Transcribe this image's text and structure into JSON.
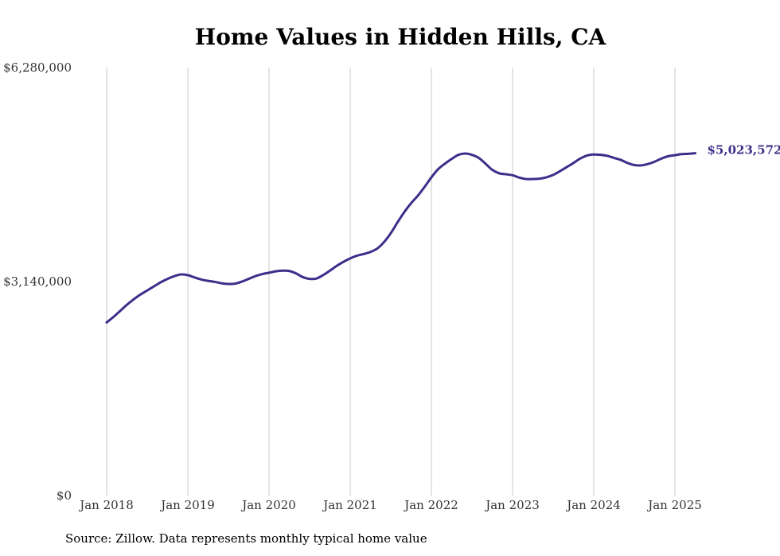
{
  "chart_data": {
    "type": "line",
    "title": "Home Values in Hidden Hills, CA",
    "xlabel": "",
    "ylabel": "",
    "ylim": [
      0,
      6280000
    ],
    "y_ticks": [
      "$0",
      "$3,140,000",
      "$6,280,000"
    ],
    "x_ticks": [
      "Jan 2018",
      "Jan 2019",
      "Jan 2020",
      "Jan 2021",
      "Jan 2022",
      "Jan 2023",
      "Jan 2024",
      "Jan 2025"
    ],
    "grid": "vertical",
    "series_color": "#3a2f8a",
    "end_label": "$5,023,572",
    "series": [
      {
        "values": [
          [
            "2018-01",
            2540000
          ],
          [
            "2018-02",
            2620000
          ],
          [
            "2018-03",
            2710000
          ],
          [
            "2018-04",
            2800000
          ],
          [
            "2018-05",
            2880000
          ],
          [
            "2018-06",
            2950000
          ],
          [
            "2018-07",
            3010000
          ],
          [
            "2018-08",
            3070000
          ],
          [
            "2018-09",
            3130000
          ],
          [
            "2018-10",
            3180000
          ],
          [
            "2018-11",
            3220000
          ],
          [
            "2018-12",
            3245000
          ],
          [
            "2019-01",
            3235000
          ],
          [
            "2019-02",
            3200000
          ],
          [
            "2019-03",
            3170000
          ],
          [
            "2019-04",
            3150000
          ],
          [
            "2019-05",
            3135000
          ],
          [
            "2019-06",
            3115000
          ],
          [
            "2019-07",
            3105000
          ],
          [
            "2019-08",
            3110000
          ],
          [
            "2019-09",
            3140000
          ],
          [
            "2019-10",
            3180000
          ],
          [
            "2019-11",
            3220000
          ],
          [
            "2019-12",
            3250000
          ],
          [
            "2020-01",
            3270000
          ],
          [
            "2020-02",
            3290000
          ],
          [
            "2020-03",
            3300000
          ],
          [
            "2020-04",
            3295000
          ],
          [
            "2020-05",
            3260000
          ],
          [
            "2020-06",
            3205000
          ],
          [
            "2020-07",
            3180000
          ],
          [
            "2020-08",
            3185000
          ],
          [
            "2020-09",
            3235000
          ],
          [
            "2020-10",
            3300000
          ],
          [
            "2020-11",
            3370000
          ],
          [
            "2020-12",
            3430000
          ],
          [
            "2021-01",
            3480000
          ],
          [
            "2021-02",
            3520000
          ],
          [
            "2021-03",
            3545000
          ],
          [
            "2021-04",
            3575000
          ],
          [
            "2021-05",
            3625000
          ],
          [
            "2021-06",
            3720000
          ],
          [
            "2021-07",
            3850000
          ],
          [
            "2021-08",
            4010000
          ],
          [
            "2021-09",
            4160000
          ],
          [
            "2021-10",
            4290000
          ],
          [
            "2021-11",
            4400000
          ],
          [
            "2021-12",
            4530000
          ],
          [
            "2022-01",
            4670000
          ],
          [
            "2022-02",
            4790000
          ],
          [
            "2022-03",
            4870000
          ],
          [
            "2022-04",
            4940000
          ],
          [
            "2022-05",
            5000000
          ],
          [
            "2022-06",
            5020000
          ],
          [
            "2022-07",
            5000000
          ],
          [
            "2022-08",
            4955000
          ],
          [
            "2022-09",
            4870000
          ],
          [
            "2022-10",
            4780000
          ],
          [
            "2022-11",
            4730000
          ],
          [
            "2022-12",
            4715000
          ],
          [
            "2023-01",
            4700000
          ],
          [
            "2023-02",
            4665000
          ],
          [
            "2023-03",
            4645000
          ],
          [
            "2023-04",
            4645000
          ],
          [
            "2023-05",
            4650000
          ],
          [
            "2023-06",
            4670000
          ],
          [
            "2023-07",
            4705000
          ],
          [
            "2023-08",
            4760000
          ],
          [
            "2023-09",
            4820000
          ],
          [
            "2023-10",
            4880000
          ],
          [
            "2023-11",
            4945000
          ],
          [
            "2023-12",
            4990000
          ],
          [
            "2024-01",
            5005000
          ],
          [
            "2024-02",
            5000000
          ],
          [
            "2024-03",
            4985000
          ],
          [
            "2024-04",
            4955000
          ],
          [
            "2024-05",
            4925000
          ],
          [
            "2024-06",
            4880000
          ],
          [
            "2024-07",
            4850000
          ],
          [
            "2024-08",
            4845000
          ],
          [
            "2024-09",
            4865000
          ],
          [
            "2024-10",
            4900000
          ],
          [
            "2024-11",
            4945000
          ],
          [
            "2024-12",
            4980000
          ],
          [
            "2025-01",
            4995000
          ],
          [
            "2025-02",
            5010000
          ],
          [
            "2025-03",
            5015000
          ],
          [
            "2025-04",
            5023572
          ]
        ]
      }
    ]
  },
  "footer": {
    "source": "Source: Zillow. Data represents monthly typical home value"
  }
}
